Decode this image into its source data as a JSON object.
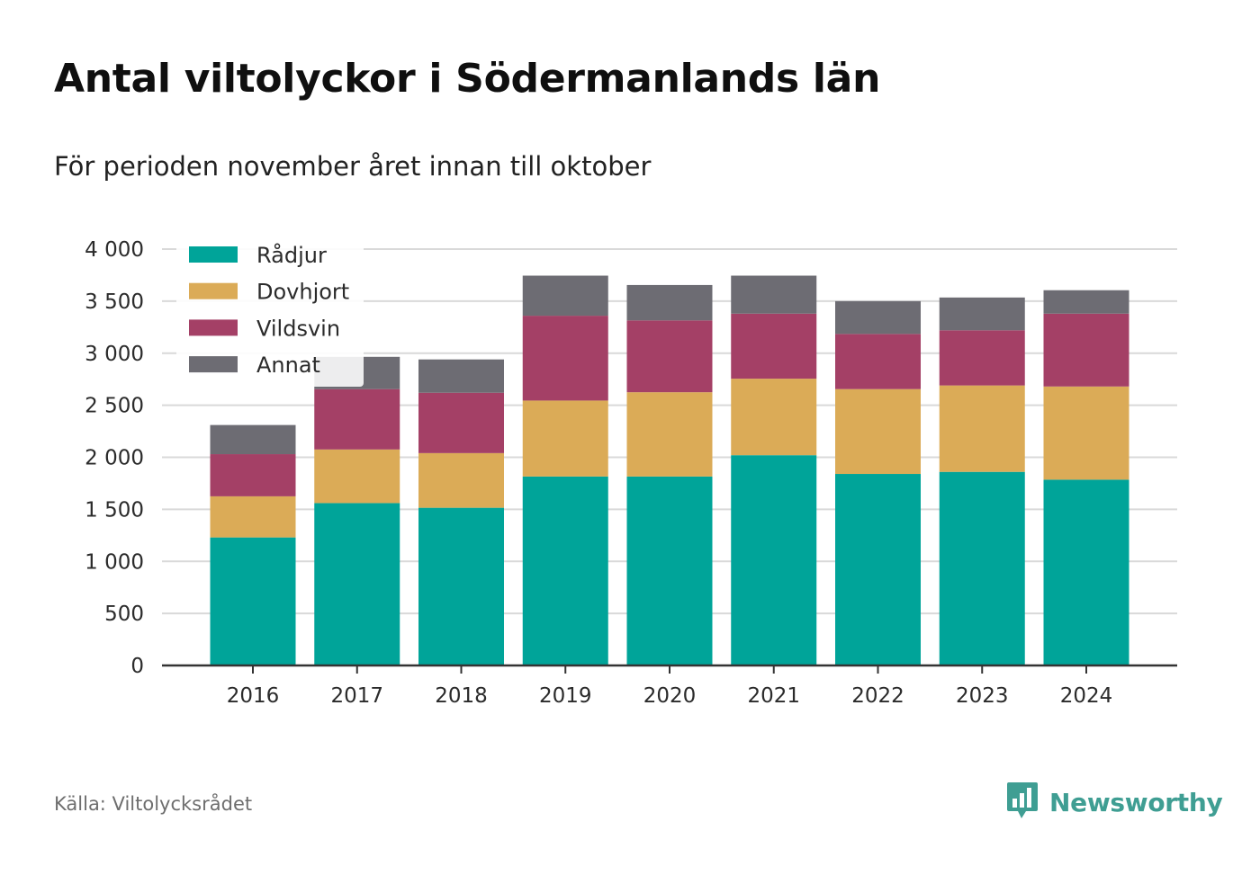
{
  "header": {
    "title": "Antal viltolyckor i Södermanlands län",
    "subtitle": "För perioden november året innan till oktober"
  },
  "footer": {
    "source": "Källa: Viltolycksrådet",
    "brand": "Newsworthy",
    "brand_icon": "bar-chart-speech-bubble-icon",
    "brand_color": "#3f9e93"
  },
  "chart_data": {
    "type": "bar",
    "stacked": true,
    "categories": [
      "2016",
      "2017",
      "2018",
      "2019",
      "2020",
      "2021",
      "2022",
      "2023",
      "2024"
    ],
    "series": [
      {
        "name": "Rådjur",
        "color": "#00a499",
        "values": [
          1230,
          1560,
          1515,
          1815,
          1815,
          2020,
          1840,
          1860,
          1785
        ]
      },
      {
        "name": "Dovhjort",
        "color": "#dbab57",
        "values": [
          395,
          515,
          525,
          730,
          810,
          735,
          815,
          830,
          895
        ]
      },
      {
        "name": "Vildsvin",
        "color": "#a44066",
        "values": [
          405,
          580,
          580,
          815,
          690,
          625,
          530,
          530,
          700
        ]
      },
      {
        "name": "Annat",
        "color": "#6d6c73",
        "values": [
          280,
          310,
          320,
          385,
          340,
          365,
          315,
          315,
          225
        ]
      }
    ],
    "ylim": [
      0,
      4000
    ],
    "yticks": [
      0,
      500,
      1000,
      1500,
      2000,
      2500,
      3000,
      3500,
      4000
    ],
    "ytick_labels": [
      "0",
      "500",
      "1 000",
      "1 500",
      "2 000",
      "2 500",
      "3 000",
      "3 500",
      "4 000"
    ],
    "grid": true,
    "legend_position": "top-left",
    "xlabel": "",
    "ylabel": ""
  }
}
